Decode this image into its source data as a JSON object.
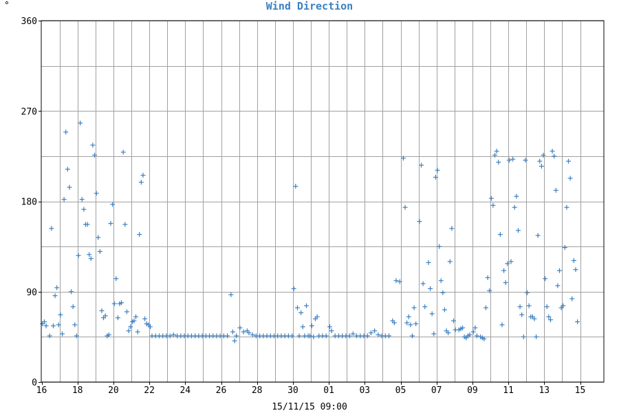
{
  "chart_data": {
    "type": "scatter",
    "title": "Wind Direction",
    "unit_label": "°",
    "xlabel": "15/11/15 09:00",
    "ylabel": "",
    "ylim": [
      0,
      360
    ],
    "xlim": [
      0,
      30.3
    ],
    "y_ticks": [
      0,
      90,
      180,
      270,
      360
    ],
    "y_gridlines": [
      0,
      45,
      90,
      135,
      180,
      225,
      270,
      315,
      360
    ],
    "x_tick_labels": [
      "16",
      "18",
      "20",
      "22",
      "24",
      "26",
      "28",
      "30",
      "01",
      "03",
      "05",
      "07",
      "09",
      "11",
      "13",
      "15"
    ],
    "x_tick_positions": [
      0,
      2,
      4,
      6,
      8,
      10,
      12,
      14,
      16,
      18,
      20,
      22,
      24,
      26,
      28,
      30
    ],
    "x_axis_note": "x in days from the '16' tick; gridlines every day",
    "grid": true,
    "marker": "+",
    "color": "#3a7fc1",
    "series": [
      {
        "name": "",
        "points": [
          [
            0.05,
            58
          ],
          [
            0.15,
            60
          ],
          [
            0.25,
            56
          ],
          [
            0.45,
            46
          ],
          [
            0.55,
            153
          ],
          [
            0.65,
            56
          ],
          [
            0.75,
            86
          ],
          [
            0.85,
            94
          ],
          [
            0.95,
            57
          ],
          [
            1.05,
            67
          ],
          [
            1.15,
            48
          ],
          [
            1.25,
            182
          ],
          [
            1.35,
            249
          ],
          [
            1.45,
            212
          ],
          [
            1.55,
            194
          ],
          [
            1.65,
            90
          ],
          [
            1.75,
            75
          ],
          [
            1.85,
            57
          ],
          [
            1.95,
            46
          ],
          [
            2.05,
            126
          ],
          [
            2.15,
            258
          ],
          [
            2.25,
            182
          ],
          [
            2.35,
            172
          ],
          [
            2.45,
            157
          ],
          [
            2.55,
            157
          ],
          [
            2.65,
            127
          ],
          [
            2.75,
            123
          ],
          [
            2.85,
            236
          ],
          [
            2.95,
            226
          ],
          [
            3.05,
            188
          ],
          [
            3.15,
            144
          ],
          [
            3.25,
            130
          ],
          [
            3.35,
            71
          ],
          [
            3.45,
            64
          ],
          [
            3.55,
            66
          ],
          [
            3.65,
            46
          ],
          [
            3.75,
            47
          ],
          [
            3.85,
            158
          ],
          [
            3.95,
            177
          ],
          [
            4.05,
            78
          ],
          [
            4.15,
            103
          ],
          [
            4.25,
            64
          ],
          [
            4.35,
            78
          ],
          [
            4.45,
            79
          ],
          [
            4.55,
            229
          ],
          [
            4.65,
            157
          ],
          [
            4.75,
            70
          ],
          [
            4.85,
            51
          ],
          [
            4.95,
            55
          ],
          [
            5.05,
            60
          ],
          [
            5.15,
            61
          ],
          [
            5.25,
            65
          ],
          [
            5.35,
            50
          ],
          [
            5.45,
            147
          ],
          [
            5.55,
            199
          ],
          [
            5.65,
            206
          ],
          [
            5.75,
            63
          ],
          [
            5.85,
            58
          ],
          [
            5.95,
            57
          ],
          [
            6.05,
            55
          ],
          [
            6.15,
            46
          ],
          [
            6.35,
            46
          ],
          [
            6.55,
            46
          ],
          [
            6.75,
            46
          ],
          [
            6.95,
            46
          ],
          [
            7.15,
            46
          ],
          [
            7.35,
            47
          ],
          [
            7.55,
            46
          ],
          [
            7.75,
            46
          ],
          [
            7.95,
            46
          ],
          [
            8.15,
            46
          ],
          [
            8.35,
            46
          ],
          [
            8.55,
            46
          ],
          [
            8.75,
            46
          ],
          [
            8.95,
            46
          ],
          [
            9.15,
            46
          ],
          [
            9.35,
            46
          ],
          [
            9.55,
            46
          ],
          [
            9.75,
            46
          ],
          [
            9.95,
            46
          ],
          [
            10.15,
            46
          ],
          [
            10.35,
            46
          ],
          [
            10.55,
            87
          ],
          [
            10.65,
            50
          ],
          [
            10.75,
            41
          ],
          [
            10.85,
            46
          ],
          [
            11.05,
            54
          ],
          [
            11.25,
            50
          ],
          [
            11.45,
            51
          ],
          [
            11.55,
            49
          ],
          [
            11.75,
            47
          ],
          [
            11.95,
            46
          ],
          [
            12.15,
            46
          ],
          [
            12.35,
            46
          ],
          [
            12.55,
            46
          ],
          [
            12.75,
            46
          ],
          [
            12.95,
            46
          ],
          [
            13.15,
            46
          ],
          [
            13.35,
            46
          ],
          [
            13.55,
            46
          ],
          [
            13.75,
            46
          ],
          [
            13.95,
            46
          ],
          [
            14.05,
            93
          ],
          [
            14.15,
            195
          ],
          [
            14.25,
            74
          ],
          [
            14.35,
            46
          ],
          [
            14.45,
            69
          ],
          [
            14.55,
            55
          ],
          [
            14.65,
            46
          ],
          [
            14.75,
            76
          ],
          [
            14.85,
            46
          ],
          [
            14.95,
            46
          ],
          [
            15.05,
            56
          ],
          [
            15.15,
            45
          ],
          [
            15.25,
            63
          ],
          [
            15.35,
            65
          ],
          [
            15.45,
            46
          ],
          [
            15.65,
            46
          ],
          [
            15.85,
            46
          ],
          [
            16.05,
            55
          ],
          [
            16.15,
            51
          ],
          [
            16.35,
            46
          ],
          [
            16.55,
            46
          ],
          [
            16.75,
            46
          ],
          [
            16.95,
            46
          ],
          [
            17.15,
            46
          ],
          [
            17.35,
            48
          ],
          [
            17.55,
            46
          ],
          [
            17.75,
            46
          ],
          [
            17.95,
            46
          ],
          [
            18.15,
            46
          ],
          [
            18.35,
            49
          ],
          [
            18.55,
            51
          ],
          [
            18.75,
            47
          ],
          [
            18.95,
            46
          ],
          [
            19.15,
            46
          ],
          [
            19.35,
            46
          ],
          [
            19.55,
            61
          ],
          [
            19.65,
            59
          ],
          [
            19.75,
            101
          ],
          [
            19.95,
            100
          ],
          [
            20.15,
            223
          ],
          [
            20.25,
            174
          ],
          [
            20.35,
            59
          ],
          [
            20.45,
            65
          ],
          [
            20.55,
            57
          ],
          [
            20.65,
            46
          ],
          [
            20.75,
            74
          ],
          [
            20.85,
            58
          ],
          [
            21.05,
            160
          ],
          [
            21.15,
            216
          ],
          [
            21.25,
            98
          ],
          [
            21.35,
            75
          ],
          [
            21.55,
            119
          ],
          [
            21.65,
            93
          ],
          [
            21.75,
            68
          ],
          [
            21.85,
            48
          ],
          [
            21.95,
            204
          ],
          [
            22.05,
            211
          ],
          [
            22.15,
            135
          ],
          [
            22.25,
            101
          ],
          [
            22.35,
            89
          ],
          [
            22.45,
            72
          ],
          [
            22.55,
            51
          ],
          [
            22.65,
            49
          ],
          [
            22.75,
            120
          ],
          [
            22.85,
            153
          ],
          [
            22.95,
            61
          ],
          [
            23.05,
            52
          ],
          [
            23.25,
            52
          ],
          [
            23.35,
            53
          ],
          [
            23.45,
            54
          ],
          [
            23.55,
            45
          ],
          [
            23.65,
            44
          ],
          [
            23.75,
            46
          ],
          [
            23.85,
            47
          ],
          [
            24.05,
            50
          ],
          [
            24.15,
            54
          ],
          [
            24.25,
            46
          ],
          [
            24.45,
            45
          ],
          [
            24.55,
            44
          ],
          [
            24.65,
            43
          ],
          [
            24.75,
            74
          ],
          [
            24.85,
            104
          ],
          [
            24.95,
            91
          ],
          [
            25.05,
            183
          ],
          [
            25.15,
            176
          ],
          [
            25.25,
            226
          ],
          [
            25.35,
            230
          ],
          [
            25.45,
            219
          ],
          [
            25.55,
            147
          ],
          [
            25.65,
            57
          ],
          [
            25.75,
            111
          ],
          [
            25.85,
            99
          ],
          [
            25.95,
            118
          ],
          [
            26.05,
            221
          ],
          [
            26.15,
            120
          ],
          [
            26.25,
            222
          ],
          [
            26.35,
            174
          ],
          [
            26.45,
            185
          ],
          [
            26.55,
            151
          ],
          [
            26.65,
            75
          ],
          [
            26.75,
            67
          ],
          [
            26.85,
            45
          ],
          [
            26.95,
            221
          ],
          [
            27.05,
            89
          ],
          [
            27.15,
            76
          ],
          [
            27.25,
            65
          ],
          [
            27.35,
            65
          ],
          [
            27.45,
            63
          ],
          [
            27.55,
            45
          ],
          [
            27.65,
            146
          ],
          [
            27.75,
            220
          ],
          [
            27.85,
            215
          ],
          [
            27.95,
            226
          ],
          [
            28.05,
            103
          ],
          [
            28.15,
            75
          ],
          [
            28.25,
            65
          ],
          [
            28.35,
            62
          ],
          [
            28.45,
            230
          ],
          [
            28.55,
            225
          ],
          [
            28.65,
            191
          ],
          [
            28.75,
            96
          ],
          [
            28.85,
            111
          ],
          [
            28.95,
            74
          ],
          [
            29.05,
            76
          ],
          [
            29.15,
            134
          ],
          [
            29.25,
            174
          ],
          [
            29.35,
            220
          ],
          [
            29.45,
            203
          ],
          [
            29.55,
            83
          ],
          [
            29.65,
            121
          ],
          [
            29.75,
            112
          ],
          [
            29.85,
            60
          ]
        ]
      }
    ]
  }
}
